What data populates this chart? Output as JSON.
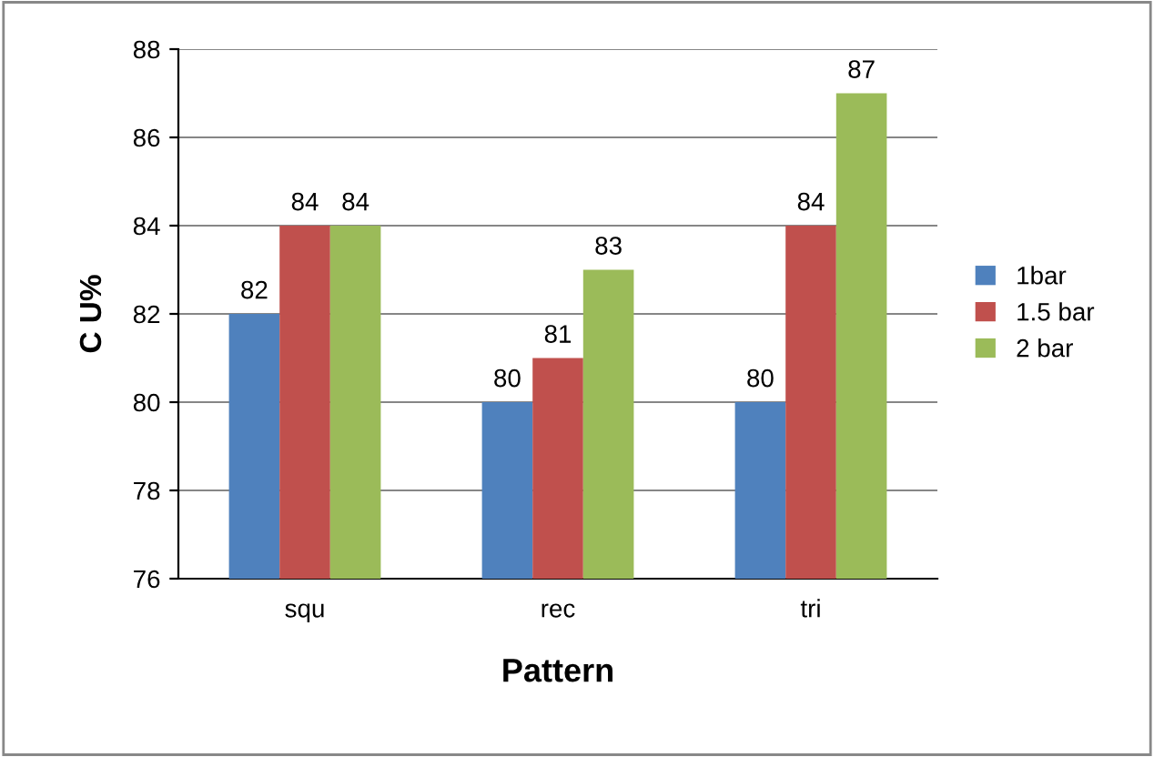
{
  "chart_data": {
    "type": "bar",
    "xlabel": "Pattern",
    "ylabel": "C U%",
    "categories": [
      "squ",
      "rec",
      "tri"
    ],
    "series": [
      {
        "name": "1bar",
        "color": "#4f81bd",
        "values": [
          82,
          80,
          80
        ]
      },
      {
        "name": "1.5 bar",
        "color": "#c0504d",
        "values": [
          84,
          81,
          84
        ]
      },
      {
        "name": "2 bar",
        "color": "#9bbb59",
        "values": [
          84,
          83,
          87
        ]
      }
    ],
    "ylim": [
      76,
      88
    ],
    "yticks": [
      76,
      78,
      80,
      82,
      84,
      86,
      88
    ],
    "grid": "y",
    "legend": "right",
    "data_labels": true
  }
}
